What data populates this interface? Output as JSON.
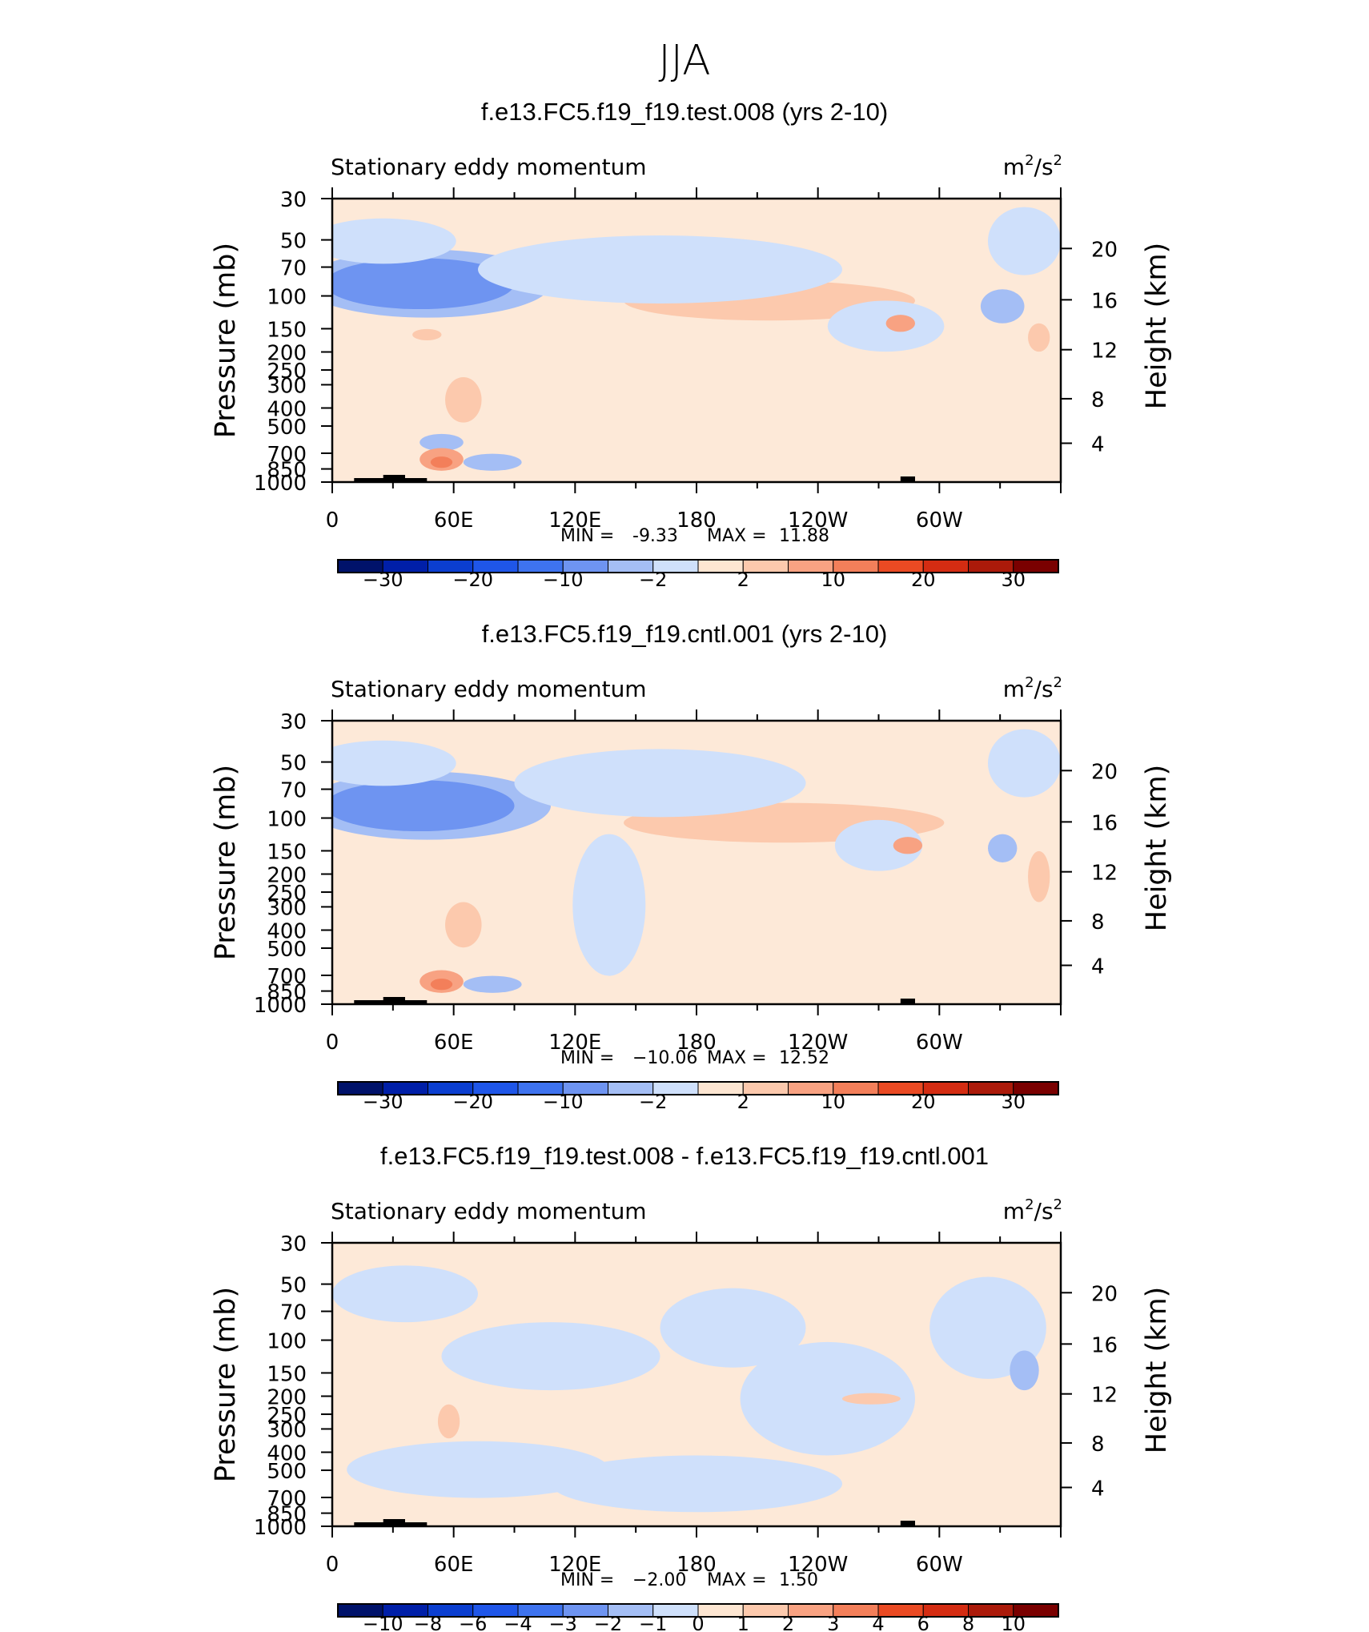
{
  "figure_title": "JJA",
  "colors": {
    "blue_fills": [
      "#00126a",
      "#001fa8",
      "#0b3ed0",
      "#1f56e8",
      "#3e73ef",
      "#6e94f1",
      "#a4bef5",
      "#cfe0fb"
    ],
    "red_fills": [
      "#fde6d2",
      "#fcc9ad",
      "#f8a282",
      "#f37f5a",
      "#ea4a23",
      "#d42c12",
      "#ab1a0a",
      "#7a0000"
    ],
    "neutral_negative": "#d3e5fb",
    "neutral_positive": "#fde9d8"
  },
  "chart_data": [
    {
      "type": "contour",
      "panel_title": "f.e13.FC5.f19_f19.test.008 (yrs 2-10)",
      "left_label": "Stationary eddy momentum",
      "units_base": "m",
      "units_middle": "/s",
      "units_sup": "2",
      "ylabel": "Pressure (mb)",
      "ylabel_right": "Height (km)",
      "pressure_ticks": [
        "30",
        "50",
        "70",
        "100",
        "150",
        "200",
        "250",
        "300",
        "400",
        "500",
        "700",
        "850",
        "1000"
      ],
      "height_ticks": [
        "20",
        "16",
        "12",
        "8",
        "4"
      ],
      "lon_ticks": [
        "0",
        "60E",
        "120E",
        "180",
        "120W",
        "60W"
      ],
      "min_label": "MIN =",
      "min_value": "-9.33",
      "max_label": "MAX =",
      "max_value": "11.88",
      "colorbar_labels": [
        "−30",
        "−20",
        "−10",
        "−2",
        "2",
        "10",
        "20",
        "30"
      ]
    },
    {
      "type": "contour",
      "panel_title": "f.e13.FC5.f19_f19.cntl.001 (yrs 2-10)",
      "left_label": "Stationary eddy momentum",
      "units_base": "m",
      "units_middle": "/s",
      "units_sup": "2",
      "ylabel": "Pressure (mb)",
      "ylabel_right": "Height (km)",
      "pressure_ticks": [
        "30",
        "50",
        "70",
        "100",
        "150",
        "200",
        "250",
        "300",
        "400",
        "500",
        "700",
        "850",
        "1000"
      ],
      "height_ticks": [
        "20",
        "16",
        "12",
        "8",
        "4"
      ],
      "lon_ticks": [
        "0",
        "60E",
        "120E",
        "180",
        "120W",
        "60W"
      ],
      "min_label": "MIN =",
      "min_value": "−10.06",
      "max_label": "MAX =",
      "max_value": "12.52",
      "colorbar_labels": [
        "−30",
        "−20",
        "−10",
        "−2",
        "2",
        "10",
        "20",
        "30"
      ]
    },
    {
      "type": "contour",
      "panel_title": "f.e13.FC5.f19_f19.test.008 - f.e13.FC5.f19_f19.cntl.001",
      "left_label": "Stationary eddy momentum",
      "units_base": "m",
      "units_middle": "/s",
      "units_sup": "2",
      "ylabel": "Pressure (mb)",
      "ylabel_right": "Height (km)",
      "pressure_ticks": [
        "30",
        "50",
        "70",
        "100",
        "150",
        "200",
        "250",
        "300",
        "400",
        "500",
        "700",
        "850",
        "1000"
      ],
      "height_ticks": [
        "20",
        "16",
        "12",
        "8",
        "4"
      ],
      "lon_ticks": [
        "0",
        "60E",
        "120E",
        "180",
        "120W",
        "60W"
      ],
      "min_label": "MIN =",
      "min_value": "−2.00",
      "max_label": "MAX =",
      "max_value": "1.50",
      "colorbar_labels": [
        "−10",
        "−8",
        "−6",
        "−4",
        "−3",
        "−2",
        "−1",
        "0",
        "1",
        "2",
        "3",
        "4",
        "6",
        "8",
        "10"
      ]
    }
  ]
}
